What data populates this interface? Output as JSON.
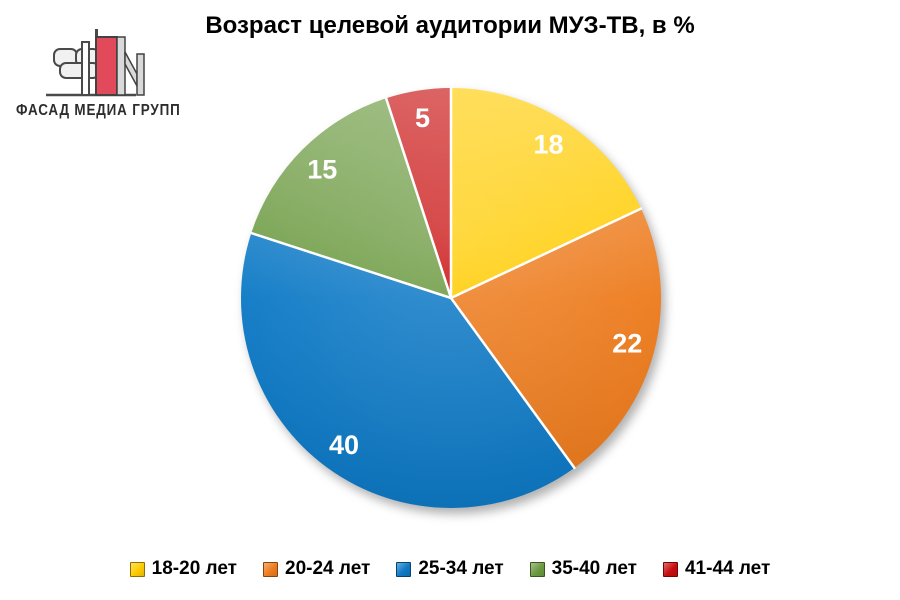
{
  "logo": {
    "text": "ФАСАД МЕДИА ГРУПП",
    "colors": {
      "red": "#e24a5c",
      "gray": "#d9d9d9",
      "light": "#f1f1f1",
      "outline": "#4a4a4a"
    }
  },
  "chart_data": {
    "type": "pie",
    "title": "Возраст целевой аудитории МУЗ-ТВ, в %",
    "unit": "%",
    "direction": "clockwise",
    "start_angle": "12 o'clock",
    "categories": [
      "18-20 лет",
      "20-24 лет",
      "25-34 лет",
      "35-40 лет",
      "41-44 лет"
    ],
    "values": [
      18,
      22,
      40,
      15,
      5
    ],
    "total": 100,
    "colors": [
      "#ffcc00",
      "#ed7c1e",
      "#0e7ac6",
      "#6b9a40",
      "#c90d0d"
    ],
    "data_label_color": "#ffffff",
    "legend_position": "bottom",
    "grid": false
  }
}
